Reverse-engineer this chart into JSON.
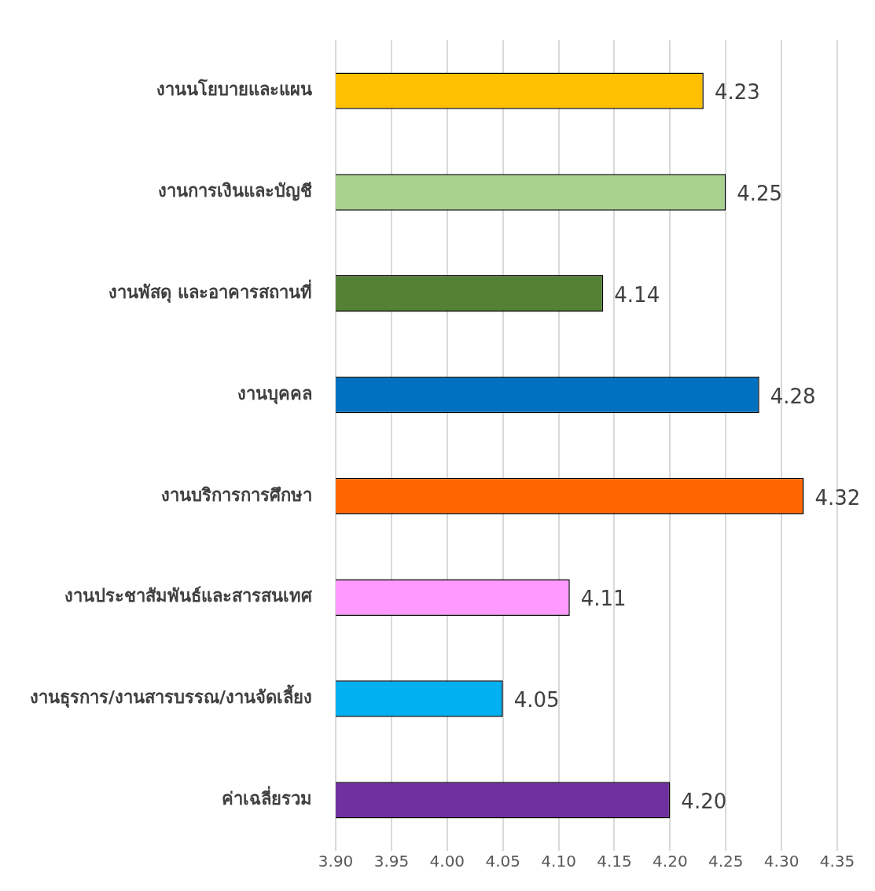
{
  "chart_data": {
    "type": "bar",
    "orientation": "horizontal",
    "categories": [
      "งานนโยบายและแผน",
      "งานการเงินและบัญชี",
      "งานพัสดุ และอาคารสถานที่",
      "งานบุคคล",
      "งานบริการการศึกษา",
      "งานประชาสัมพันธ์และสารสนเทศ",
      "งานธุรการ/งานสารบรรณ/งานจัดเลี้ยง",
      "ค่าเฉลี่ยรวม"
    ],
    "values": [
      4.23,
      4.25,
      4.14,
      4.28,
      4.32,
      4.11,
      4.05,
      4.2
    ],
    "value_labels": [
      "4.23",
      "4.25",
      "4.14",
      "4.28",
      "4.32",
      "4.11",
      "4.05",
      "4.20"
    ],
    "colors": [
      "#ffc000",
      "#a9d18e",
      "#548235",
      "#0070c0",
      "#ff6600",
      "#ff99ff",
      "#00b0f0",
      "#7030a0"
    ],
    "xlim": [
      3.9,
      4.35
    ],
    "xticks": [
      {
        "value": 3.9,
        "label": "3.90"
      },
      {
        "value": 3.95,
        "label": "3.95"
      },
      {
        "value": 4.0,
        "label": "4.00"
      },
      {
        "value": 4.05,
        "label": "4.05"
      },
      {
        "value": 4.1,
        "label": "4.10"
      },
      {
        "value": 4.15,
        "label": "4.15"
      },
      {
        "value": 4.2,
        "label": "4.20"
      },
      {
        "value": 4.25,
        "label": "4.25"
      },
      {
        "value": 4.3,
        "label": "4.30"
      },
      {
        "value": 4.35,
        "label": "4.35"
      }
    ],
    "grid": "x",
    "legend": false
  }
}
